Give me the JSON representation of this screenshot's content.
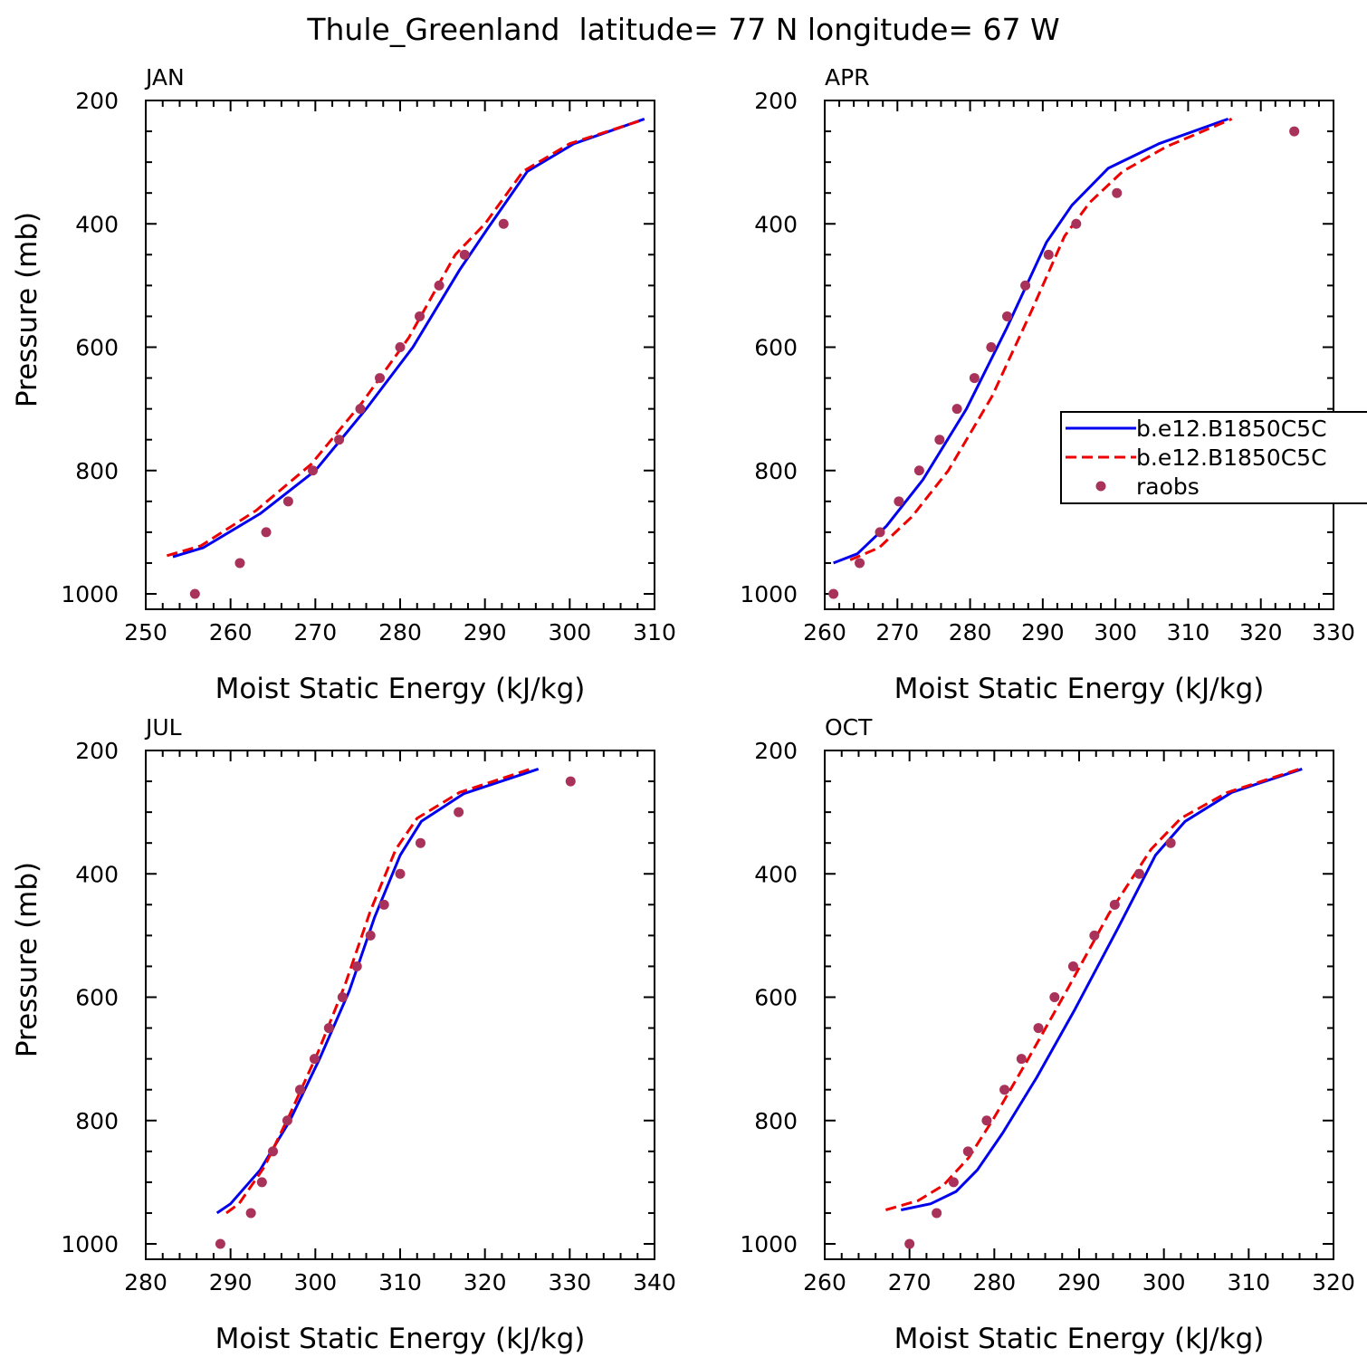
{
  "figure": {
    "title": "Thule_Greenland  latitude= 77 N longitude= 67 W"
  },
  "legend": {
    "entries": [
      {
        "label": "b.e12.B1850C5C",
        "color": "#0000ee",
        "style": "solid"
      },
      {
        "label": "b.e12.B1850C5C",
        "color": "#ee0000",
        "style": "dashed"
      },
      {
        "label": "raobs",
        "color": "#a8325a",
        "style": "marker"
      }
    ]
  },
  "chart_data": [
    {
      "type": "line",
      "panel": "JAN",
      "title": "JAN",
      "xlabel": "Moist Static Energy (kJ/kg)",
      "ylabel": "Pressure (mb)",
      "xlim": [
        250,
        310
      ],
      "ylim": [
        1000,
        200
      ],
      "y_inverted": true,
      "xticks": [
        250,
        260,
        270,
        280,
        290,
        300,
        310
      ],
      "yticks": [
        200,
        400,
        600,
        800,
        1000
      ],
      "grid": false,
      "series": [
        {
          "name": "b.e12.B1850C5C",
          "color": "#0000ee",
          "style": "solid",
          "x": [
            253.2,
            256.8,
            263.5,
            270.0,
            276.0,
            281.5,
            287.0,
            290.2,
            295.0,
            300.5,
            308.8
          ],
          "y": [
            940,
            925,
            870,
            800,
            700,
            600,
            475,
            410,
            315,
            270,
            230
          ]
        },
        {
          "name": "b.e12.B1850C5C",
          "color": "#ee0000",
          "style": "dashed",
          "x": [
            252.5,
            256.5,
            263.0,
            269.5,
            275.5,
            281.0,
            286.5,
            290.0,
            294.5,
            300.0,
            308.5
          ],
          "y": [
            938,
            922,
            865,
            790,
            690,
            585,
            450,
            400,
            315,
            270,
            232
          ]
        },
        {
          "name": "raobs",
          "color": "#a8325a",
          "style": "marker",
          "x": [
            255.8,
            261.1,
            264.2,
            266.8,
            269.7,
            272.8,
            275.3,
            277.6,
            280.0,
            282.3,
            284.6,
            287.6,
            292.2
          ],
          "y": [
            1000,
            950,
            900,
            850,
            800,
            750,
            700,
            650,
            600,
            550,
            500,
            450,
            400
          ]
        }
      ]
    },
    {
      "type": "line",
      "panel": "APR",
      "title": "APR",
      "xlabel": "Moist Static Energy (kJ/kg)",
      "ylabel": "",
      "xlim": [
        260,
        330
      ],
      "ylim": [
        1000,
        200
      ],
      "y_inverted": true,
      "xticks": [
        260,
        270,
        280,
        290,
        300,
        310,
        320,
        330
      ],
      "yticks": [
        200,
        400,
        600,
        800,
        1000
      ],
      "grid": false,
      "series": [
        {
          "name": "b.e12.B1850C5C",
          "color": "#0000ee",
          "style": "solid",
          "x": [
            261.2,
            264.5,
            268.5,
            273.5,
            279.5,
            285.0,
            290.5,
            294.0,
            299.0,
            306.0,
            315.5
          ],
          "y": [
            950,
            935,
            890,
            815,
            700,
            570,
            430,
            370,
            310,
            270,
            230
          ]
        },
        {
          "name": "b.e12.B1850C5C",
          "color": "#ee0000",
          "style": "dashed",
          "x": [
            263.5,
            267.5,
            272.0,
            277.0,
            283.0,
            288.5,
            293.0,
            296.5,
            301.0,
            307.0,
            316.0
          ],
          "y": [
            945,
            925,
            875,
            800,
            680,
            540,
            420,
            365,
            315,
            275,
            230
          ]
        },
        {
          "name": "raobs",
          "color": "#a8325a",
          "style": "marker",
          "x": [
            261.2,
            264.8,
            267.6,
            270.2,
            273.0,
            275.8,
            278.2,
            280.6,
            282.9,
            285.1,
            287.6,
            290.8,
            294.6,
            300.2,
            324.6
          ],
          "y": [
            1000,
            950,
            900,
            850,
            800,
            750,
            700,
            650,
            600,
            550,
            500,
            450,
            400,
            350,
            250
          ]
        }
      ]
    },
    {
      "type": "line",
      "panel": "JUL",
      "title": "JUL",
      "xlabel": "Moist Static Energy (kJ/kg)",
      "ylabel": "Pressure (mb)",
      "xlim": [
        280,
        340
      ],
      "ylim": [
        1000,
        200
      ],
      "y_inverted": true,
      "xticks": [
        280,
        290,
        300,
        310,
        320,
        330,
        340
      ],
      "yticks": [
        200,
        400,
        600,
        800,
        1000
      ],
      "grid": false,
      "series": [
        {
          "name": "b.e12.B1850C5C",
          "color": "#0000ee",
          "style": "solid",
          "x": [
            288.4,
            290.0,
            293.5,
            297.0,
            300.5,
            304.0,
            307.0,
            310.0,
            312.5,
            317.5,
            326.3
          ],
          "y": [
            950,
            935,
            880,
            800,
            700,
            590,
            470,
            370,
            315,
            270,
            230
          ]
        },
        {
          "name": "b.e12.B1850C5C",
          "color": "#ee0000",
          "style": "dashed",
          "x": [
            289.5,
            291.0,
            294.0,
            297.0,
            300.3,
            303.5,
            306.5,
            309.5,
            312.0,
            317.0,
            325.8
          ],
          "y": [
            950,
            935,
            875,
            790,
            690,
            580,
            460,
            360,
            310,
            268,
            228
          ]
        },
        {
          "name": "raobs",
          "color": "#a8325a",
          "style": "marker",
          "x": [
            288.8,
            292.4,
            293.7,
            295.0,
            296.7,
            298.2,
            299.9,
            301.6,
            303.2,
            304.9,
            306.5,
            308.1,
            310.0,
            312.4,
            316.9,
            330.1
          ],
          "y": [
            1000,
            950,
            900,
            850,
            800,
            750,
            700,
            650,
            600,
            550,
            500,
            450,
            400,
            350,
            300,
            250
          ]
        }
      ]
    },
    {
      "type": "line",
      "panel": "OCT",
      "title": "OCT",
      "xlabel": "Moist Static Energy (kJ/kg)",
      "ylabel": "",
      "xlim": [
        260,
        320
      ],
      "ylim": [
        1000,
        200
      ],
      "y_inverted": true,
      "xticks": [
        260,
        270,
        280,
        290,
        300,
        310,
        320
      ],
      "yticks": [
        200,
        400,
        600,
        800,
        1000
      ],
      "grid": false,
      "series": [
        {
          "name": "b.e12.B1850C5C",
          "color": "#0000ee",
          "style": "solid",
          "x": [
            269.0,
            272.5,
            275.5,
            278.0,
            281.0,
            285.0,
            289.5,
            294.5,
            299.0,
            302.5,
            308.0,
            316.3
          ],
          "y": [
            945,
            935,
            915,
            880,
            820,
            730,
            620,
            490,
            370,
            315,
            268,
            230
          ]
        },
        {
          "name": "b.e12.B1850C5C",
          "color": "#ee0000",
          "style": "dashed",
          "x": [
            267.2,
            271.0,
            274.0,
            277.0,
            280.0,
            284.0,
            288.5,
            293.5,
            298.5,
            302.0,
            307.5,
            316.0
          ],
          "y": [
            945,
            930,
            905,
            860,
            795,
            700,
            590,
            465,
            360,
            310,
            268,
            230
          ]
        },
        {
          "name": "raobs",
          "color": "#a8325a",
          "style": "marker",
          "x": [
            270.0,
            273.2,
            275.2,
            276.9,
            279.1,
            281.2,
            283.2,
            285.2,
            287.1,
            289.3,
            291.8,
            294.2,
            297.1,
            300.8
          ],
          "y": [
            1000,
            950,
            900,
            850,
            800,
            750,
            700,
            650,
            600,
            550,
            500,
            450,
            400,
            350
          ]
        }
      ]
    }
  ]
}
